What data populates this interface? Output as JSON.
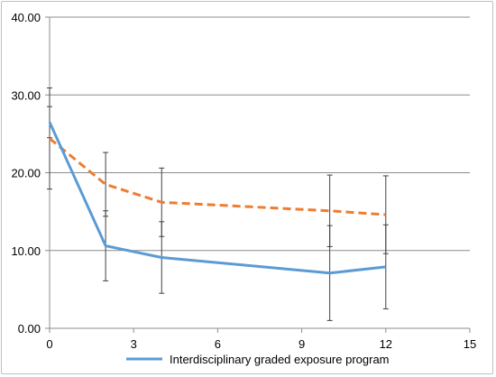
{
  "chart_data": {
    "type": "line",
    "x_ticks": [
      "0",
      "3",
      "6",
      "9",
      "12",
      "15"
    ],
    "y_ticks": [
      "0.00",
      "10.00",
      "20.00",
      "30.00",
      "40.00"
    ],
    "xlim": [
      0,
      15
    ],
    "ylim": [
      0,
      40
    ],
    "grid": "horizontal",
    "legend_position": "bottom",
    "series": [
      {
        "name": "Interdisciplinary graded exposure program",
        "color": "#5b9bd5",
        "style": "solid",
        "x": [
          0,
          2,
          4,
          10,
          12
        ],
        "y": [
          26.5,
          10.6,
          9.1,
          7.1,
          7.9
        ],
        "error": [
          2.0,
          4.5,
          4.6,
          6.1,
          5.4
        ]
      },
      {
        "color": "#ed7d31",
        "style": "dashed",
        "x": [
          0,
          2,
          4,
          10,
          12
        ],
        "y": [
          24.4,
          18.5,
          16.2,
          15.1,
          14.6
        ],
        "error": [
          6.5,
          4.1,
          4.4,
          4.6,
          5.0
        ]
      }
    ]
  }
}
